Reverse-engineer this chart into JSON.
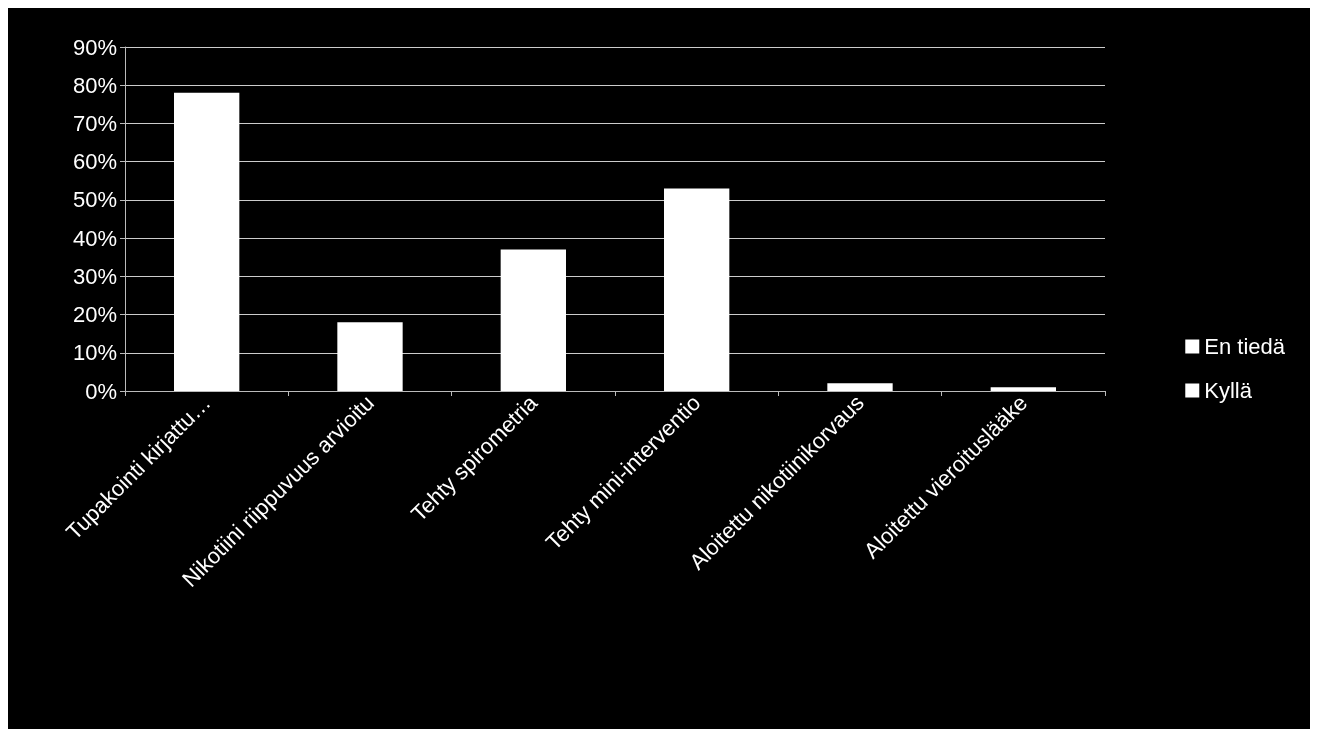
{
  "chart_data": {
    "type": "bar",
    "stacked": true,
    "categories": [
      "Tupakointi kirjattu…",
      "Nikotiini riippuvuus arvioitu",
      "Tehty spirometria",
      "Tehty mini-interventio",
      "Aloitettu nikotiinikorvaus",
      "Aloitettu vieroituslääke"
    ],
    "series": [
      {
        "name": "Kyllä",
        "color": "#ffffff",
        "values": [
          78,
          18,
          37,
          53,
          2,
          1
        ]
      },
      {
        "name": "En tiedä",
        "color": "#ffffff",
        "values": [
          0,
          0,
          0,
          0,
          0,
          0
        ]
      }
    ],
    "ylim": [
      0,
      90
    ],
    "yticks": [
      {
        "value": 0,
        "label": "0%"
      },
      {
        "value": 10,
        "label": "10%"
      },
      {
        "value": 20,
        "label": "20%"
      },
      {
        "value": 30,
        "label": "30%"
      },
      {
        "value": 40,
        "label": "40%"
      },
      {
        "value": 50,
        "label": "50%"
      },
      {
        "value": 60,
        "label": "60%"
      },
      {
        "value": 70,
        "label": "70%"
      },
      {
        "value": 80,
        "label": "80%"
      },
      {
        "value": 90,
        "label": "90%"
      }
    ],
    "grid": "y",
    "legend": "right"
  }
}
